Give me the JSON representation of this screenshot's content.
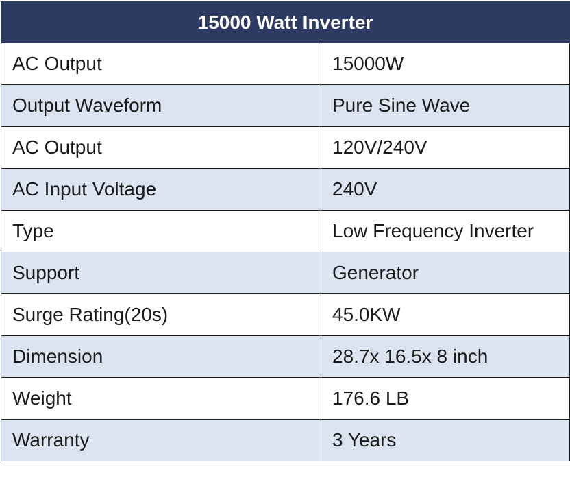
{
  "table": {
    "title": "15000 Watt Inverter",
    "rows": [
      {
        "label": "AC Output",
        "value": "15000W"
      },
      {
        "label": "Output Waveform",
        "value": "Pure Sine Wave"
      },
      {
        "label": "AC Output",
        "value": "120V/240V"
      },
      {
        "label": "AC Input Voltage",
        "value": "240V"
      },
      {
        "label": "Type",
        "value": "Low Frequency Inverter"
      },
      {
        "label": "Support",
        "value": "Generator"
      },
      {
        "label": "Surge Rating(20s)",
        "value": "45.0KW"
      },
      {
        "label": "Dimension",
        "value": "28.7x 16.5x 8 inch"
      },
      {
        "label": "Weight",
        "value": "176.6 LB"
      },
      {
        "label": "Warranty",
        "value": "3 Years"
      }
    ],
    "colors": {
      "header_bg": "#2d3b63",
      "header_text": "#ffffff",
      "alt_row_bg": "#dce3f1",
      "plain_row_bg": "#ffffff",
      "border": "#1c1c1c"
    }
  }
}
